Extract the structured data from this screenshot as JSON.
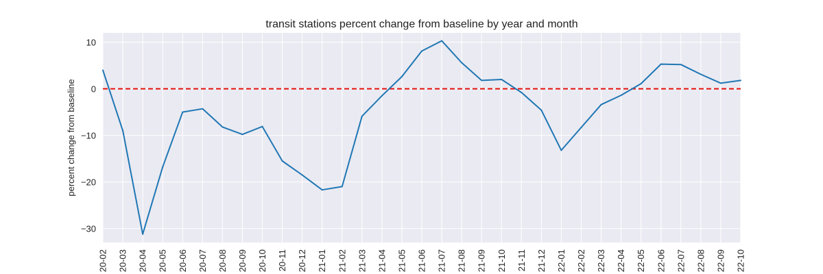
{
  "chart_data": {
    "type": "line",
    "title": "transit stations percent change from baseline by year and month",
    "xlabel": "",
    "ylabel": "percent change from baseline",
    "categories": [
      "20-02",
      "20-03",
      "20-04",
      "20-05",
      "20-06",
      "20-07",
      "20-08",
      "20-09",
      "20-10",
      "20-11",
      "20-12",
      "21-01",
      "21-02",
      "21-03",
      "21-04",
      "21-05",
      "21-06",
      "21-07",
      "21-08",
      "21-09",
      "21-10",
      "21-11",
      "21-12",
      "22-01",
      "22-02",
      "22-03",
      "22-04",
      "22-05",
      "22-06",
      "22-07",
      "22-08",
      "22-09",
      "22-10"
    ],
    "series": [
      {
        "values": [
          4.0,
          -9.0,
          -31.2,
          -16.8,
          -5.0,
          -4.3,
          -8.2,
          -9.8,
          -8.1,
          -15.5,
          -18.5,
          -21.7,
          -21.0,
          -5.9,
          -1.5,
          2.6,
          8.1,
          10.3,
          5.6,
          1.8,
          2.0,
          -0.8,
          -4.6,
          -13.2,
          -8.3,
          -3.4,
          -1.4,
          1.1,
          5.3,
          5.2,
          3.1,
          1.2,
          1.8
        ],
        "color": "#1f77b4"
      }
    ],
    "reference_line": {
      "y": 0,
      "color": "#e3120b",
      "style": "dashed"
    },
    "yticks": [
      10,
      0,
      -10,
      -20,
      -30
    ],
    "ylim": [
      -33,
      12
    ],
    "grid": true,
    "background": "#eaeaf2",
    "legend": "none"
  }
}
